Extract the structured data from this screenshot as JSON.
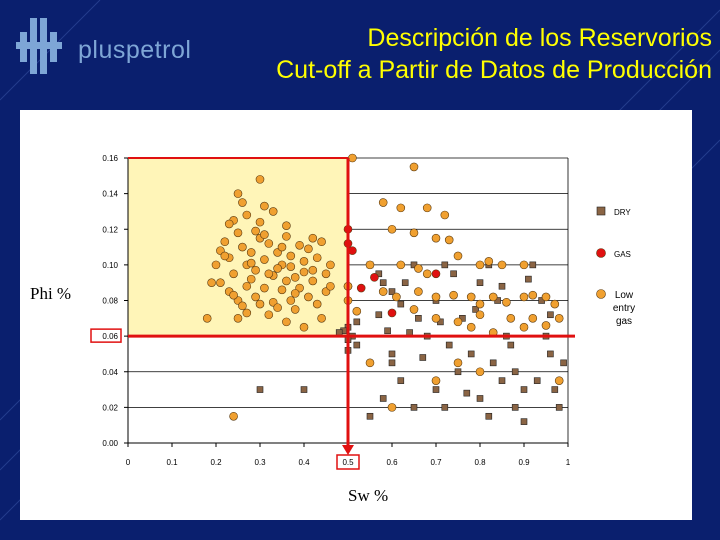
{
  "header": {
    "brand": "pluspetrol",
    "title_line1": "Descripción de los Reservorios",
    "title_line2": "Cut-off a Partir de Datos de Producción"
  },
  "axis_labels": {
    "y": "Phi %",
    "x": "Sw %"
  },
  "colors": {
    "background": "#0a1f6e",
    "title": "#ffff00",
    "dry": "#8a6444",
    "gas": "#e01010",
    "low_entry_gas": "#f0a030",
    "cutoff_fill": "#fff5b8",
    "cutoff_lines": "#e01010"
  },
  "chart_data": {
    "type": "scatter",
    "xlim": [
      0,
      1
    ],
    "ylim": [
      0,
      0.16
    ],
    "x_ticks": [
      "0",
      "0.1",
      "0.2",
      "0.3",
      "0.4",
      "0.5",
      "0.6",
      "0.7",
      "0.8",
      "0.9",
      "1"
    ],
    "y_ticks": [
      "0.00",
      "0.02",
      "0.04",
      "0.06",
      "0.08",
      "0.10",
      "0.12",
      "0.14",
      "0.16"
    ],
    "grid": "horizontal",
    "legend_placement": "right",
    "cutoffs": {
      "sw_max": 0.5,
      "phi_min": 0.06
    },
    "series": [
      {
        "name": "DRY",
        "marker": "square",
        "color": "#8a6444",
        "points": [
          [
            0.5,
            0.065
          ],
          [
            0.51,
            0.06
          ],
          [
            0.52,
            0.055
          ],
          [
            0.5,
            0.052
          ],
          [
            0.49,
            0.063
          ],
          [
            0.52,
            0.068
          ],
          [
            0.5,
            0.058
          ],
          [
            0.48,
            0.062
          ],
          [
            0.55,
            0.1
          ],
          [
            0.57,
            0.095
          ],
          [
            0.58,
            0.09
          ],
          [
            0.6,
            0.085
          ],
          [
            0.62,
            0.078
          ],
          [
            0.63,
            0.09
          ],
          [
            0.65,
            0.1
          ],
          [
            0.66,
            0.07
          ],
          [
            0.68,
            0.06
          ],
          [
            0.7,
            0.08
          ],
          [
            0.72,
            0.1
          ],
          [
            0.74,
            0.095
          ],
          [
            0.76,
            0.07
          ],
          [
            0.78,
            0.05
          ],
          [
            0.8,
            0.09
          ],
          [
            0.82,
            0.1
          ],
          [
            0.84,
            0.08
          ],
          [
            0.86,
            0.06
          ],
          [
            0.88,
            0.04
          ],
          [
            0.9,
            0.03
          ],
          [
            0.92,
            0.1
          ],
          [
            0.94,
            0.08
          ],
          [
            0.95,
            0.06
          ],
          [
            0.96,
            0.05
          ],
          [
            0.97,
            0.03
          ],
          [
            0.98,
            0.02
          ],
          [
            0.6,
            0.045
          ],
          [
            0.62,
            0.035
          ],
          [
            0.65,
            0.02
          ],
          [
            0.7,
            0.03
          ],
          [
            0.72,
            0.02
          ],
          [
            0.75,
            0.04
          ],
          [
            0.8,
            0.025
          ],
          [
            0.82,
            0.015
          ],
          [
            0.85,
            0.035
          ],
          [
            0.88,
            0.02
          ],
          [
            0.9,
            0.012
          ],
          [
            0.55,
            0.015
          ],
          [
            0.58,
            0.025
          ],
          [
            0.3,
            0.03
          ],
          [
            0.4,
            0.03
          ],
          [
            0.6,
            0.05
          ],
          [
            0.57,
            0.072
          ],
          [
            0.59,
            0.063
          ],
          [
            0.67,
            0.048
          ],
          [
            0.73,
            0.055
          ],
          [
            0.77,
            0.028
          ],
          [
            0.83,
            0.045
          ],
          [
            0.87,
            0.055
          ],
          [
            0.93,
            0.035
          ],
          [
            0.99,
            0.045
          ],
          [
            0.64,
            0.062
          ],
          [
            0.71,
            0.068
          ],
          [
            0.79,
            0.075
          ],
          [
            0.85,
            0.088
          ],
          [
            0.91,
            0.092
          ],
          [
            0.96,
            0.072
          ]
        ]
      },
      {
        "name": "GAS",
        "marker": "circle",
        "color": "#e01010",
        "points": [
          [
            0.5,
            0.12
          ],
          [
            0.5,
            0.112
          ],
          [
            0.51,
            0.108
          ],
          [
            0.56,
            0.093
          ],
          [
            0.6,
            0.073
          ],
          [
            0.7,
            0.095
          ],
          [
            0.5,
            0.088
          ],
          [
            0.53,
            0.087
          ]
        ]
      },
      {
        "name": "Low entry gas",
        "marker": "circle",
        "color": "#f0a030",
        "points": [
          [
            0.2,
            0.1
          ],
          [
            0.21,
            0.108
          ],
          [
            0.22,
            0.113
          ],
          [
            0.23,
            0.104
          ],
          [
            0.24,
            0.095
          ],
          [
            0.25,
            0.118
          ],
          [
            0.26,
            0.11
          ],
          [
            0.27,
            0.1
          ],
          [
            0.28,
            0.107
          ],
          [
            0.29,
            0.097
          ],
          [
            0.3,
            0.115
          ],
          [
            0.31,
            0.103
          ],
          [
            0.32,
            0.112
          ],
          [
            0.33,
            0.094
          ],
          [
            0.34,
            0.107
          ],
          [
            0.35,
            0.1
          ],
          [
            0.36,
            0.116
          ],
          [
            0.37,
            0.105
          ],
          [
            0.38,
            0.093
          ],
          [
            0.39,
            0.111
          ],
          [
            0.4,
            0.102
          ],
          [
            0.41,
            0.109
          ],
          [
            0.42,
            0.097
          ],
          [
            0.43,
            0.104
          ],
          [
            0.44,
            0.113
          ],
          [
            0.45,
            0.095
          ],
          [
            0.46,
            0.1
          ],
          [
            0.21,
            0.09
          ],
          [
            0.23,
            0.085
          ],
          [
            0.25,
            0.08
          ],
          [
            0.27,
            0.088
          ],
          [
            0.29,
            0.082
          ],
          [
            0.31,
            0.087
          ],
          [
            0.33,
            0.079
          ],
          [
            0.35,
            0.086
          ],
          [
            0.37,
            0.08
          ],
          [
            0.39,
            0.087
          ],
          [
            0.41,
            0.082
          ],
          [
            0.43,
            0.078
          ],
          [
            0.45,
            0.085
          ],
          [
            0.24,
            0.125
          ],
          [
            0.27,
            0.128
          ],
          [
            0.3,
            0.124
          ],
          [
            0.33,
            0.13
          ],
          [
            0.36,
            0.122
          ],
          [
            0.26,
            0.135
          ],
          [
            0.31,
            0.133
          ],
          [
            0.25,
            0.14
          ],
          [
            0.3,
            0.148
          ],
          [
            0.22,
            0.105
          ],
          [
            0.28,
            0.092
          ],
          [
            0.34,
            0.098
          ],
          [
            0.38,
            0.084
          ],
          [
            0.42,
            0.091
          ],
          [
            0.44,
            0.07
          ],
          [
            0.32,
            0.072
          ],
          [
            0.27,
            0.073
          ],
          [
            0.36,
            0.068
          ],
          [
            0.4,
            0.065
          ],
          [
            0.26,
            0.077
          ],
          [
            0.3,
            0.078
          ],
          [
            0.34,
            0.076
          ],
          [
            0.38,
            0.075
          ],
          [
            0.24,
            0.083
          ],
          [
            0.28,
            0.101
          ],
          [
            0.32,
            0.095
          ],
          [
            0.36,
            0.091
          ],
          [
            0.4,
            0.096
          ],
          [
            0.29,
            0.119
          ],
          [
            0.35,
            0.11
          ],
          [
            0.19,
            0.09
          ],
          [
            0.18,
            0.07
          ],
          [
            0.23,
            0.123
          ],
          [
            0.31,
            0.117
          ],
          [
            0.37,
            0.099
          ],
          [
            0.42,
            0.115
          ],
          [
            0.46,
            0.088
          ],
          [
            0.51,
            0.16
          ],
          [
            0.65,
            0.155
          ],
          [
            0.58,
            0.135
          ],
          [
            0.62,
            0.132
          ],
          [
            0.68,
            0.132
          ],
          [
            0.72,
            0.128
          ],
          [
            0.6,
            0.12
          ],
          [
            0.65,
            0.118
          ],
          [
            0.7,
            0.115
          ],
          [
            0.73,
            0.114
          ],
          [
            0.75,
            0.105
          ],
          [
            0.8,
            0.1
          ],
          [
            0.82,
            0.102
          ],
          [
            0.85,
            0.1
          ],
          [
            0.9,
            0.1
          ],
          [
            0.55,
            0.1
          ],
          [
            0.62,
            0.1
          ],
          [
            0.66,
            0.098
          ],
          [
            0.68,
            0.095
          ],
          [
            0.58,
            0.085
          ],
          [
            0.61,
            0.082
          ],
          [
            0.66,
            0.085
          ],
          [
            0.7,
            0.082
          ],
          [
            0.74,
            0.083
          ],
          [
            0.78,
            0.082
          ],
          [
            0.8,
            0.078
          ],
          [
            0.83,
            0.082
          ],
          [
            0.86,
            0.079
          ],
          [
            0.9,
            0.082
          ],
          [
            0.92,
            0.083
          ],
          [
            0.95,
            0.082
          ],
          [
            0.97,
            0.078
          ],
          [
            0.65,
            0.075
          ],
          [
            0.7,
            0.07
          ],
          [
            0.75,
            0.068
          ],
          [
            0.78,
            0.065
          ],
          [
            0.8,
            0.072
          ],
          [
            0.83,
            0.062
          ],
          [
            0.87,
            0.07
          ],
          [
            0.9,
            0.065
          ],
          [
            0.92,
            0.07
          ],
          [
            0.95,
            0.066
          ],
          [
            0.98,
            0.07
          ],
          [
            0.55,
            0.045
          ],
          [
            0.7,
            0.035
          ],
          [
            0.75,
            0.045
          ],
          [
            0.8,
            0.04
          ],
          [
            0.98,
            0.035
          ],
          [
            0.6,
            0.02
          ],
          [
            0.5,
            0.088
          ],
          [
            0.5,
            0.08
          ],
          [
            0.52,
            0.074
          ],
          [
            0.25,
            0.07
          ],
          [
            0.24,
            0.015
          ]
        ]
      }
    ]
  }
}
